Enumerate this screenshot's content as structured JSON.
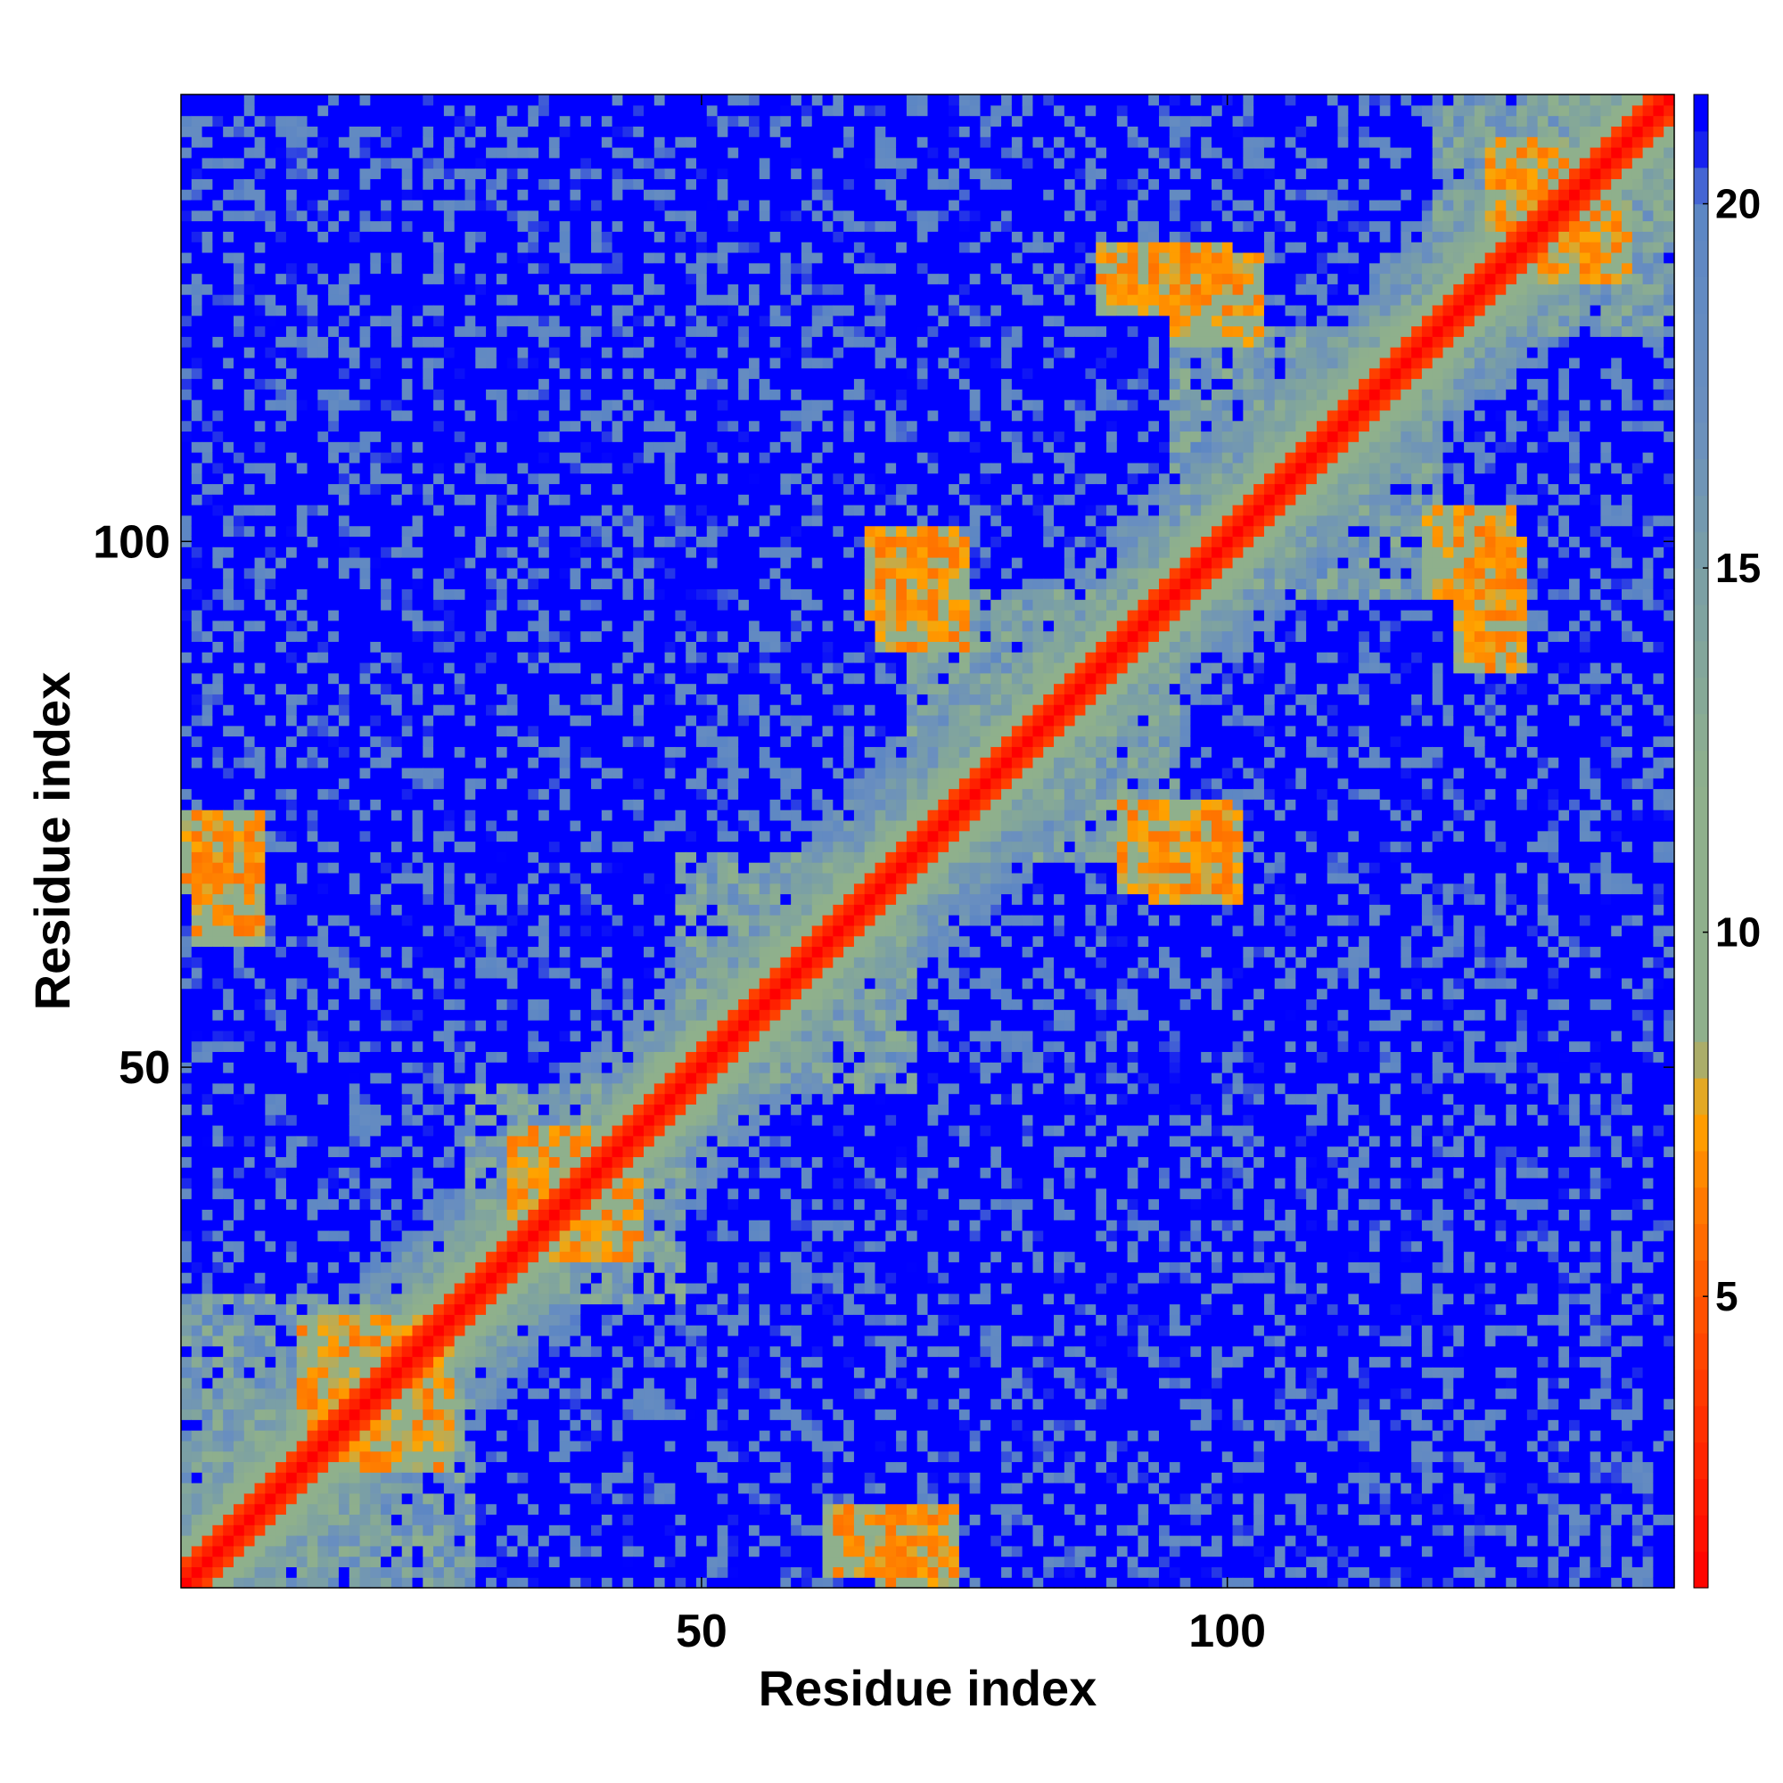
{
  "chart_data": {
    "type": "heatmap",
    "title": "",
    "xlabel": "Residue index",
    "ylabel": "Residue index",
    "n_residues": 142,
    "x_ticks": [
      50,
      100
    ],
    "y_ticks": [
      50,
      100
    ],
    "colorbar": {
      "ticks": [
        5,
        10,
        15,
        20
      ],
      "range": [
        1,
        21.5
      ],
      "stops": [
        {
          "value": 1,
          "color": "#ff0000"
        },
        {
          "value": 3,
          "color": "#ff2a00"
        },
        {
          "value": 5,
          "color": "#ff5500"
        },
        {
          "value": 6.5,
          "color": "#ff8000"
        },
        {
          "value": 7.5,
          "color": "#ffa500"
        },
        {
          "value": 8.5,
          "color": "#8fb08c"
        },
        {
          "value": 12,
          "color": "#8fb08c"
        },
        {
          "value": 15,
          "color": "#7a9fa6"
        },
        {
          "value": 17,
          "color": "#6a8fbf"
        },
        {
          "value": 20,
          "color": "#5c86c4"
        },
        {
          "value": 21,
          "color": "#0000ff"
        }
      ]
    },
    "features": {
      "diagonal_width": 2,
      "structured_blocks": [
        {
          "x": [
            1,
            28
          ],
          "y": [
            1,
            28
          ]
        },
        {
          "x": [
            28,
            48
          ],
          "y": [
            28,
            48
          ]
        },
        {
          "x": [
            48,
            70
          ],
          "y": [
            48,
            70
          ]
        },
        {
          "x": [
            70,
            95
          ],
          "y": [
            70,
            95
          ]
        },
        {
          "x": [
            95,
            120
          ],
          "y": [
            95,
            120
          ]
        },
        {
          "x": [
            120,
            142
          ],
          "y": [
            120,
            142
          ]
        }
      ],
      "off_diagonal_contacts": [
        {
          "x": [
            62,
            72
          ],
          "y": [
            2,
            8
          ]
        },
        {
          "x": [
            2,
            8
          ],
          "y": [
            62,
            72
          ]
        },
        {
          "x": [
            35,
            44
          ],
          "y": [
            32,
            42
          ]
        },
        {
          "x": [
            32,
            42
          ],
          "y": [
            35,
            44
          ]
        },
        {
          "x": [
            12,
            25
          ],
          "y": [
            14,
            26
          ]
        },
        {
          "x": [
            14,
            26
          ],
          "y": [
            12,
            25
          ]
        },
        {
          "x": [
            66,
            74
          ],
          "y": [
            93,
            101
          ]
        },
        {
          "x": [
            93,
            101
          ],
          "y": [
            66,
            74
          ]
        },
        {
          "x": [
            90,
            100
          ],
          "y": [
            67,
            75
          ]
        },
        {
          "x": [
            67,
            75
          ],
          "y": [
            90,
            100
          ]
        },
        {
          "x": [
            119,
            127
          ],
          "y": [
            95,
            103
          ]
        },
        {
          "x": [
            95,
            103
          ],
          "y": [
            119,
            127
          ]
        },
        {
          "x": [
            125,
            132
          ],
          "y": [
            130,
            138
          ]
        },
        {
          "x": [
            130,
            138
          ],
          "y": [
            125,
            132
          ]
        },
        {
          "x": [
            88,
            100
          ],
          "y": [
            122,
            128
          ]
        },
        {
          "x": [
            122,
            128
          ],
          "y": [
            88,
            100
          ]
        },
        {
          "x": [
            1,
            8
          ],
          "y": [
            67,
            74
          ]
        },
        {
          "x": [
            67,
            74
          ],
          "y": [
            1,
            8
          ]
        }
      ]
    }
  }
}
